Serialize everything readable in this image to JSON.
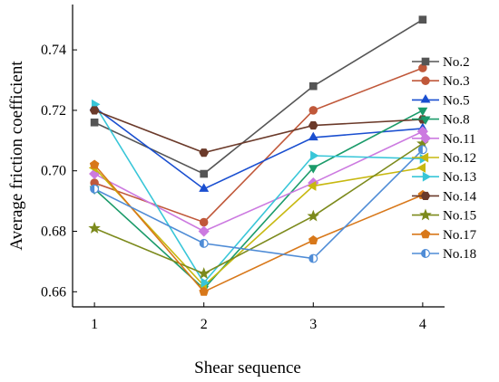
{
  "chart_data": {
    "type": "line",
    "title": "",
    "xlabel": "Shear sequence",
    "ylabel": "Average friction coefficient",
    "x": [
      1,
      2,
      3,
      4
    ],
    "x_tick_labels": [
      "1",
      "2",
      "3",
      "4"
    ],
    "xlim": [
      0.8,
      4.2
    ],
    "ylim": [
      0.655,
      0.755
    ],
    "y_ticks": [
      0.66,
      0.68,
      0.7,
      0.72,
      0.74
    ],
    "y_tick_labels": [
      "0.66",
      "0.68",
      "0.70",
      "0.72",
      "0.74"
    ],
    "grid": false,
    "legend_position": "right",
    "series": [
      {
        "name": "No.2",
        "color": "#555555",
        "marker": "square",
        "values": [
          0.716,
          0.699,
          0.728,
          0.75
        ]
      },
      {
        "name": "No.3",
        "color": "#c0583a",
        "marker": "circle",
        "values": [
          0.696,
          0.683,
          0.72,
          0.734
        ]
      },
      {
        "name": "No.5",
        "color": "#1a4fd0",
        "marker": "triangle-up",
        "values": [
          0.721,
          0.694,
          0.711,
          0.714
        ]
      },
      {
        "name": "No.8",
        "color": "#1b9b6a",
        "marker": "triangle-down",
        "values": [
          0.694,
          0.661,
          0.701,
          0.72
        ]
      },
      {
        "name": "No.11",
        "color": "#cc7ae0",
        "marker": "diamond",
        "values": [
          0.699,
          0.68,
          0.696,
          0.713
        ]
      },
      {
        "name": "No.12",
        "color": "#c7b80f",
        "marker": "triangle-left",
        "values": [
          0.701,
          0.662,
          0.695,
          0.701
        ]
      },
      {
        "name": "No.13",
        "color": "#38c6d8",
        "marker": "triangle-right",
        "values": [
          0.722,
          0.663,
          0.705,
          0.704
        ]
      },
      {
        "name": "No.14",
        "color": "#6b3a2a",
        "marker": "hexagon",
        "values": [
          0.72,
          0.706,
          0.715,
          0.717
        ]
      },
      {
        "name": "No.15",
        "color": "#7c8a1c",
        "marker": "star",
        "values": [
          0.681,
          0.666,
          0.685,
          0.709
        ]
      },
      {
        "name": "No.17",
        "color": "#d8781a",
        "marker": "pentagon",
        "values": [
          0.702,
          0.66,
          0.677,
          0.692
        ]
      },
      {
        "name": "No.18",
        "color": "#4f8cd6",
        "marker": "circle-half",
        "values": [
          0.694,
          0.676,
          0.671,
          0.707
        ]
      }
    ]
  }
}
